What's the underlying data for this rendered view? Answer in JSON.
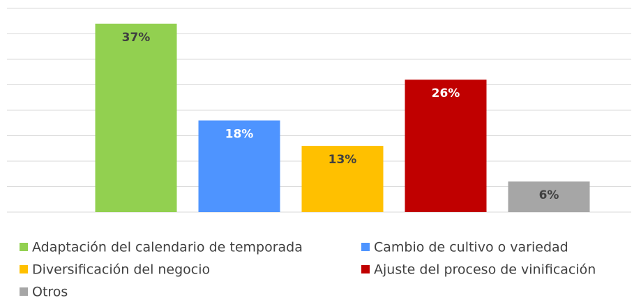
{
  "chart_data": {
    "type": "bar",
    "series": [
      {
        "name": "Adaptación del calendario de temporada",
        "color": "#92d050",
        "values": [
          37
        ],
        "value_labels": [
          "37%"
        ]
      },
      {
        "name": "Cambio de cultivo o variedad",
        "color": "#4e94ff",
        "values": [
          18
        ],
        "value_labels": [
          "18%"
        ]
      },
      {
        "name": "Diversificación del negocio",
        "color": "#ffc000",
        "values": [
          13
        ],
        "value_labels": [
          "13%"
        ]
      },
      {
        "name": "Ajuste del proceso de vinificación",
        "color": "#c00000",
        "values": [
          26
        ],
        "value_labels": [
          "26%"
        ]
      },
      {
        "name": "Otros",
        "color": "#a6a6a6",
        "values": [
          6
        ],
        "value_labels": [
          "6%"
        ]
      }
    ],
    "ylim": [
      0,
      40
    ],
    "yticks": [
      0,
      5,
      10,
      15,
      20,
      25,
      30,
      35,
      40
    ],
    "grid": true,
    "legend": "bottom"
  }
}
